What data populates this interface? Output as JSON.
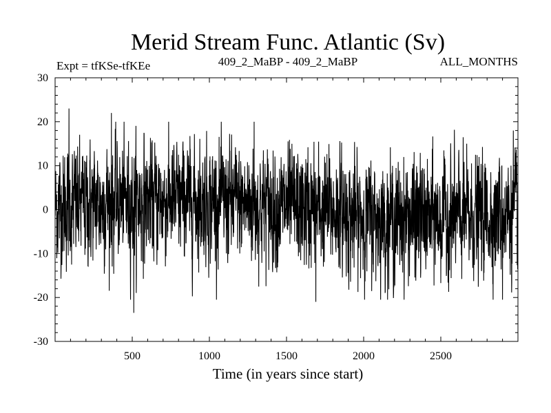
{
  "chart_data": {
    "type": "line",
    "title": "Merid Stream Func. Atlantic (Sv)",
    "subtitle_left": "Expt = tfKSe-tfKEe",
    "subtitle_center": "409_2_MaBP - 409_2_MaBP",
    "subtitle_right": "ALL_MONTHS",
    "xlabel": "Time (in years since start)",
    "ylabel": "",
    "xlim": [
      0,
      3000
    ],
    "ylim": [
      -30,
      30
    ],
    "xticks": [
      500,
      1000,
      1500,
      2000,
      2500
    ],
    "yticks": [
      30,
      20,
      10,
      0,
      -10,
      -20,
      -30
    ],
    "series": [
      {
        "name": "Merid Stream Func. Atlantic",
        "color": "#000000",
        "x_start": 1,
        "x_step": 1,
        "n_points": 3000,
        "mean": 0.5,
        "std": 6.5,
        "min": -23.5,
        "max": 23,
        "extremes": [
          {
            "x": 90,
            "y": 23
          },
          {
            "x": 365,
            "y": 22
          },
          {
            "x": 510,
            "y": -23.5
          },
          {
            "x": 1290,
            "y": 20
          },
          {
            "x": 1690,
            "y": -21
          },
          {
            "x": 2900,
            "y": -20.5
          },
          {
            "x": 2970,
            "y": 18
          }
        ]
      }
    ]
  }
}
